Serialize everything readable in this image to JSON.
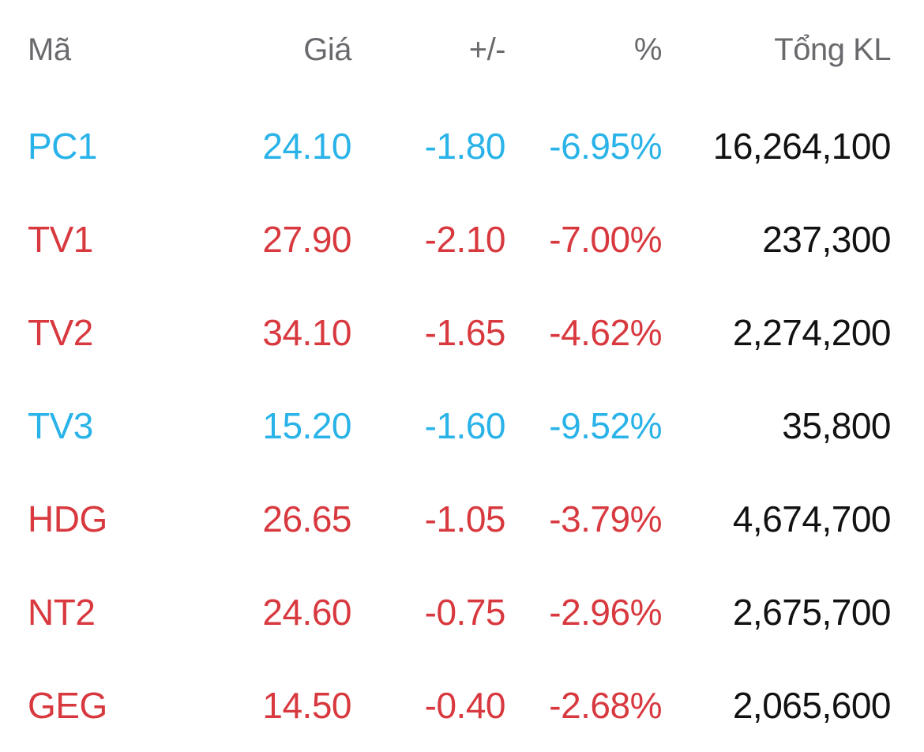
{
  "table": {
    "columns": [
      {
        "key": "symbol",
        "label": "Mã"
      },
      {
        "key": "price",
        "label": "Giá"
      },
      {
        "key": "change",
        "label": "+/-"
      },
      {
        "key": "percent",
        "label": "%"
      },
      {
        "key": "volume",
        "label": "Tổng KL"
      }
    ],
    "rows": [
      {
        "symbol": "PC1",
        "price": "24.10",
        "change": "-1.80",
        "percent": "-6.95%",
        "volume": "16,264,100",
        "status": "floor"
      },
      {
        "symbol": "TV1",
        "price": "27.90",
        "change": "-2.10",
        "percent": "-7.00%",
        "volume": "237,300",
        "status": "down"
      },
      {
        "symbol": "TV2",
        "price": "34.10",
        "change": "-1.65",
        "percent": "-4.62%",
        "volume": "2,274,200",
        "status": "down"
      },
      {
        "symbol": "TV3",
        "price": "15.20",
        "change": "-1.60",
        "percent": "-9.52%",
        "volume": "35,800",
        "status": "floor"
      },
      {
        "symbol": "HDG",
        "price": "26.65",
        "change": "-1.05",
        "percent": "-3.79%",
        "volume": "4,674,700",
        "status": "down"
      },
      {
        "symbol": "NT2",
        "price": "24.60",
        "change": "-0.75",
        "percent": "-2.96%",
        "volume": "2,675,700",
        "status": "down"
      },
      {
        "symbol": "GEG",
        "price": "14.50",
        "change": "-0.40",
        "percent": "-2.68%",
        "volume": "2,065,600",
        "status": "down"
      }
    ],
    "colors": {
      "floor": "#29b3e8",
      "down": "#d8393f",
      "volume": "#121212",
      "header": "#6a6a6e"
    }
  }
}
